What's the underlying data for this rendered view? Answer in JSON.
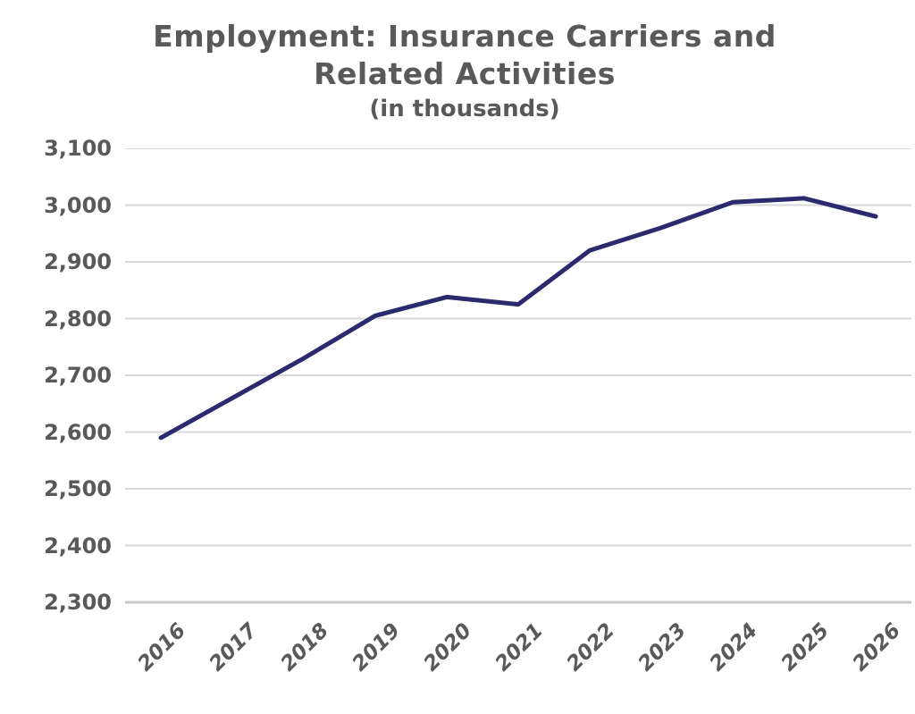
{
  "title": {
    "line1": "Employment: Insurance Carriers and",
    "line2": "Related Activities",
    "subtitle": "(in thousands)"
  },
  "colors": {
    "line": "#2B2A6E",
    "gridline": "#D9D9D9",
    "axis_line": "#C9C9C9",
    "text": "#595959"
  },
  "chart_data": {
    "type": "line",
    "title": "Employment: Insurance Carriers and Related Activities",
    "subtitle": "(in thousands)",
    "categories": [
      "2016",
      "2017",
      "2018",
      "2019",
      "2020",
      "2021",
      "2022",
      "2023",
      "2024",
      "2025",
      "2026"
    ],
    "series": [
      {
        "name": "Employment: Insurance Carriers and Related Activities (in thousands)",
        "values": [
          2590,
          2660,
          2730,
          2805,
          2838,
          2825,
          2920,
          2960,
          3005,
          3012,
          2980
        ]
      }
    ],
    "ylim": [
      2300,
      3100
    ],
    "ytick_step": 100,
    "ytick_labels": [
      "3,100",
      "3,000",
      "2,900",
      "2,800",
      "2,700",
      "2,600",
      "2,500",
      "2,400",
      "2,300"
    ],
    "xlabel": "",
    "ylabel": "",
    "grid": "horizontal",
    "legend": "none",
    "marker": "none"
  }
}
